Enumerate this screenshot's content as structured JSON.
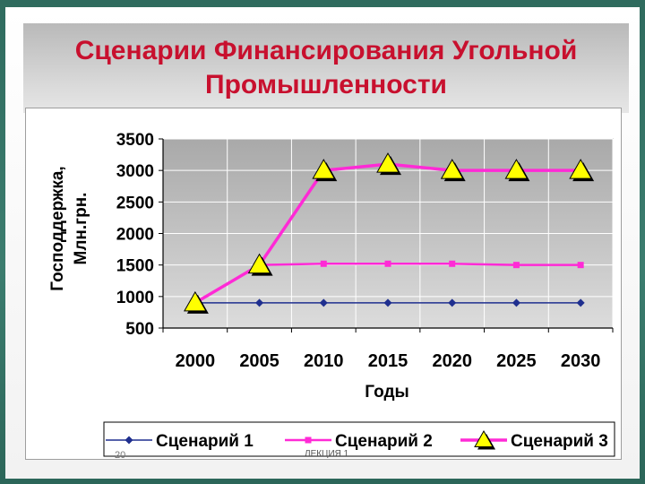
{
  "slide": {
    "title": "Сценарии Финансирования Угольной Промышленности",
    "page_number": "20",
    "footer_text": "ЛЕКЦИЯ 1"
  },
  "colors": {
    "title": "#c8102e",
    "series1": "#1f2f8f",
    "series2": "#ff2ad6",
    "series3": "#ff2ad6",
    "marker3_fill": "#ffff00",
    "plot_background": "#c0c0c0"
  },
  "chart_data": {
    "type": "line",
    "title": "",
    "xlabel": "Годы",
    "ylabel": "Господдержка, Млн.грн.",
    "ylim": [
      500,
      3500
    ],
    "yticks": [
      500,
      1000,
      1500,
      2000,
      2500,
      3000,
      3500
    ],
    "categories": [
      "2000",
      "2005",
      "2010",
      "2015",
      "2020",
      "2025",
      "2030"
    ],
    "grid": true,
    "legend": "bottom",
    "series": [
      {
        "name": "Сценарий 1",
        "marker": "diamond",
        "values": [
          900,
          900,
          900,
          900,
          900,
          900,
          900
        ]
      },
      {
        "name": "Сценарий 2",
        "marker": "square",
        "values": [
          900,
          1500,
          1520,
          1520,
          1520,
          1500,
          1500
        ]
      },
      {
        "name": "Сценарий 3",
        "marker": "triangle",
        "values": [
          900,
          1500,
          3000,
          3100,
          3000,
          3000,
          3000
        ]
      }
    ]
  }
}
